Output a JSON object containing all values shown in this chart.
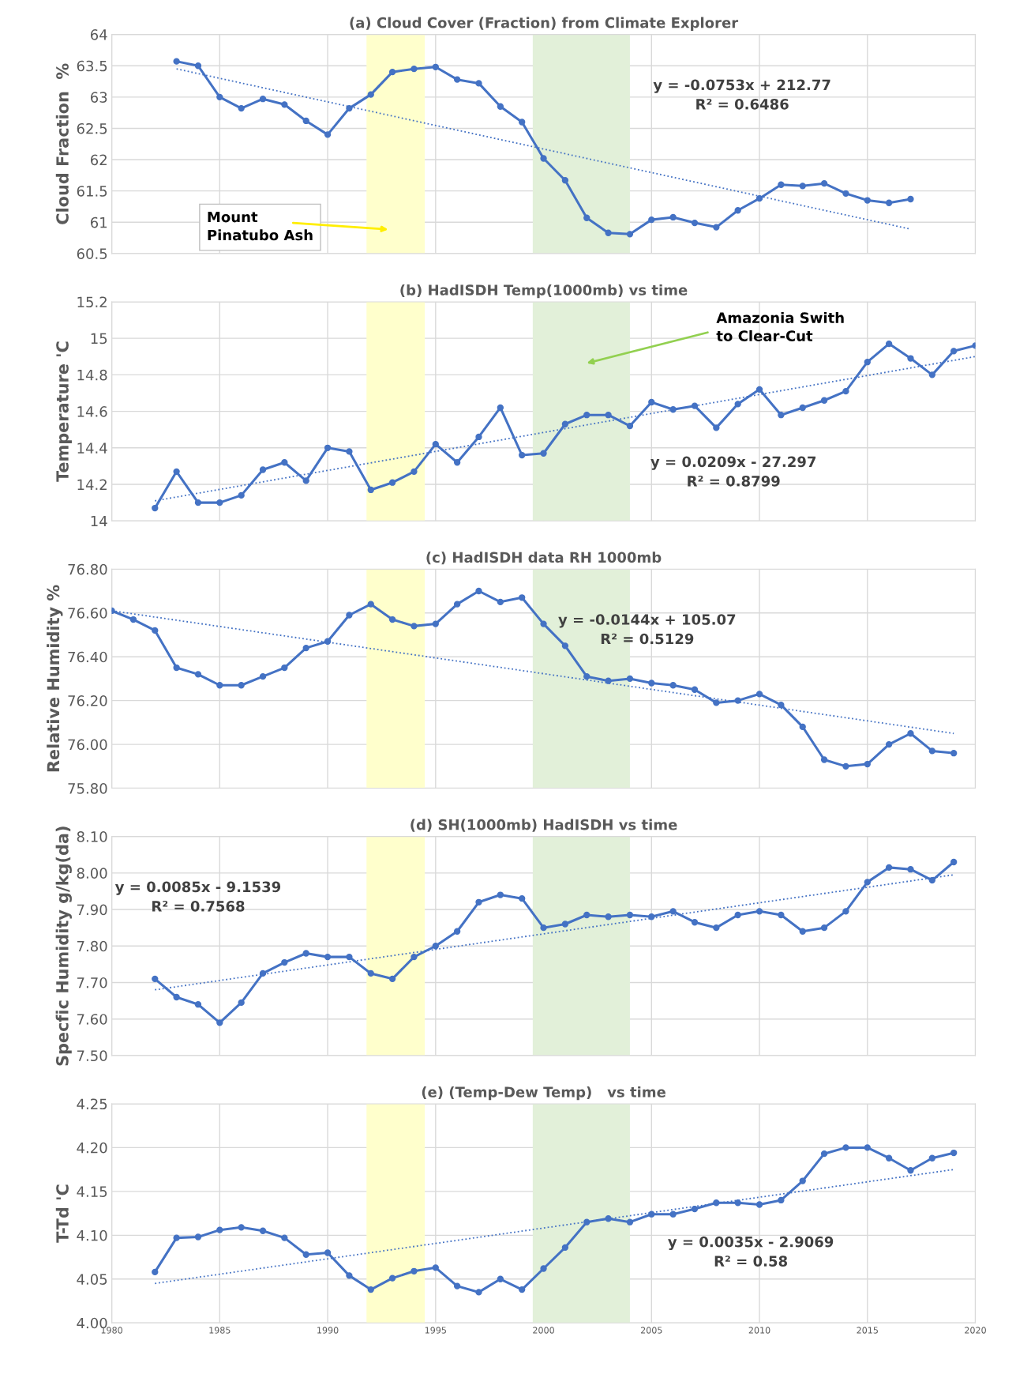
{
  "chart_data": [
    {
      "type": "line",
      "title": "(a) Cloud Cover (Fraction) from Climate Explorer",
      "ylabel": "Cloud Fraction  %",
      "xlim": [
        1980,
        2020
      ],
      "xticks": [
        1980,
        1985,
        1990,
        1995,
        2000,
        2005,
        2010,
        2015,
        2020
      ],
      "ylim": [
        60.5,
        64
      ],
      "yticks": [
        60.5,
        61,
        61.5,
        62,
        62.5,
        63,
        63.5,
        64
      ],
      "tick_labels": "y",
      "grid": true,
      "legend": false,
      "series": [
        {
          "color": "#4472c4",
          "marker": "circle",
          "line_style": "solid",
          "x": [
            1983,
            1984,
            1985,
            1986,
            1987,
            1988,
            1989,
            1990,
            1991,
            1992,
            1993,
            1994,
            1995,
            1996,
            1997,
            1998,
            1999,
            2000,
            2001,
            2002,
            2003,
            2004,
            2005,
            2006,
            2007,
            2008,
            2009,
            2010,
            2011,
            2012,
            2013,
            2014,
            2015,
            2016,
            2017
          ],
          "values": [
            63.57,
            63.5,
            63.0,
            62.82,
            62.97,
            62.88,
            62.62,
            62.4,
            62.82,
            63.04,
            63.4,
            63.45,
            63.48,
            63.28,
            63.22,
            62.85,
            62.6,
            62.02,
            61.67,
            61.07,
            60.83,
            60.81,
            61.04,
            61.08,
            60.99,
            60.92,
            61.19,
            61.38,
            61.6,
            61.58,
            61.62,
            61.46,
            61.35,
            61.31,
            61.37
          ]
        },
        {
          "type": "line",
          "color": "#4472c4",
          "marker": "none",
          "line_style": "dotted",
          "x": [
            1983,
            2017
          ],
          "values": [
            63.45,
            60.89
          ]
        }
      ],
      "bands": [
        {
          "axis": "x",
          "from": 1991.8,
          "to": 1994.5,
          "color": "#ffffcc"
        },
        {
          "axis": "x",
          "from": 1999.5,
          "to": 2004,
          "color": "#e2f0d9"
        }
      ],
      "annotations": [
        "Mount\nPinatubo Ash",
        "y = -0.0753x + 212.77\nR² = 0.6486"
      ]
    },
    {
      "type": "line",
      "title": "(b) HadISDH Temp(1000mb) vs time",
      "ylabel": "Temperature 'C",
      "xlim": [
        1980,
        2020
      ],
      "xticks": [
        1980,
        1985,
        1990,
        1995,
        2000,
        2005,
        2010,
        2015,
        2020
      ],
      "ylim": [
        14,
        15.2
      ],
      "yticks": [
        14,
        14.2,
        14.4,
        14.6,
        14.8,
        15,
        15.2
      ],
      "tick_labels": "y",
      "grid": true,
      "legend": false,
      "series": [
        {
          "color": "#4472c4",
          "marker": "circle",
          "line_style": "solid",
          "x": [
            1982,
            1983,
            1984,
            1985,
            1986,
            1987,
            1988,
            1989,
            1990,
            1991,
            1992,
            1993,
            1994,
            1995,
            1996,
            1997,
            1998,
            1999,
            2000,
            2001,
            2002,
            2003,
            2004,
            2005,
            2006,
            2007,
            2008,
            2009,
            2010,
            2011,
            2012,
            2013,
            2014,
            2015,
            2016,
            2017,
            2018,
            2019,
            2020
          ],
          "values": [
            14.07,
            14.27,
            14.1,
            14.1,
            14.14,
            14.28,
            14.32,
            14.22,
            14.4,
            14.38,
            14.17,
            14.21,
            14.27,
            14.42,
            14.32,
            14.46,
            14.62,
            14.36,
            14.37,
            14.53,
            14.58,
            14.58,
            14.52,
            14.65,
            14.61,
            14.63,
            14.51,
            14.64,
            14.72,
            14.58,
            14.62,
            14.66,
            14.71,
            14.87,
            14.97,
            14.89,
            14.8,
            14.93,
            14.96
          ]
        },
        {
          "type": "line",
          "color": "#4472c4",
          "marker": "none",
          "line_style": "dotted",
          "x": [
            1982,
            2020
          ],
          "values": [
            14.11,
            14.9
          ]
        }
      ],
      "bands": [
        {
          "axis": "x",
          "from": 1991.8,
          "to": 1994.5,
          "color": "#ffffcc"
        },
        {
          "axis": "x",
          "from": 1999.5,
          "to": 2004,
          "color": "#e2f0d9"
        }
      ],
      "annotations": [
        "Amazonia Swith\nto Clear-Cut",
        "y = 0.0209x - 27.297\nR² = 0.8799"
      ]
    },
    {
      "type": "line",
      "title": "(c) HadISDH data RH 1000mb",
      "ylabel": "Relative Humidity %",
      "xlim": [
        1980,
        2020
      ],
      "xticks": [
        1980,
        1985,
        1990,
        1995,
        2000,
        2005,
        2010,
        2015,
        2020
      ],
      "ylim": [
        75.8,
        76.8
      ],
      "yticks": [
        {
          "value": 75.8,
          "label": "75.80"
        },
        {
          "value": 76.0,
          "label": "76.00"
        },
        {
          "value": 76.2,
          "label": "76.20"
        },
        {
          "value": 76.4,
          "label": "76.40"
        },
        {
          "value": 76.6,
          "label": "76.60"
        },
        {
          "value": 76.8,
          "label": "76.80"
        }
      ],
      "tick_labels": "y",
      "grid": true,
      "legend": false,
      "series": [
        {
          "color": "#4472c4",
          "marker": "circle",
          "line_style": "solid",
          "x": [
            1980,
            1981,
            1982,
            1983,
            1984,
            1985,
            1986,
            1987,
            1988,
            1989,
            1990,
            1991,
            1992,
            1993,
            1994,
            1995,
            1996,
            1997,
            1998,
            1999,
            2000,
            2001,
            2002,
            2003,
            2004,
            2005,
            2006,
            2007,
            2008,
            2009,
            2010,
            2011,
            2012,
            2013,
            2014,
            2015,
            2016,
            2017,
            2018,
            2019
          ],
          "values": [
            76.61,
            76.57,
            76.52,
            76.35,
            76.32,
            76.27,
            76.27,
            76.31,
            76.35,
            76.44,
            76.47,
            76.59,
            76.64,
            76.57,
            76.54,
            76.55,
            76.64,
            76.7,
            76.65,
            76.67,
            76.55,
            76.45,
            76.31,
            76.29,
            76.3,
            76.28,
            76.27,
            76.25,
            76.19,
            76.2,
            76.23,
            76.18,
            76.08,
            75.93,
            75.9,
            75.91,
            76.0,
            76.05,
            75.97,
            75.96
          ]
        },
        {
          "type": "line",
          "color": "#4472c4",
          "marker": "none",
          "line_style": "dotted",
          "x": [
            1980,
            2019
          ],
          "values": [
            76.61,
            76.05
          ]
        }
      ],
      "bands": [
        {
          "axis": "x",
          "from": 1991.8,
          "to": 1994.5,
          "color": "#ffffcc"
        },
        {
          "axis": "x",
          "from": 1999.5,
          "to": 2004,
          "color": "#e2f0d9"
        }
      ],
      "annotations": [
        "y = -0.0144x + 105.07\nR² = 0.5129"
      ]
    },
    {
      "type": "line",
      "title": "(d) SH(1000mb) HadISDH vs time",
      "ylabel": "Specfic Humidity g/kg(da)",
      "xlim": [
        1980,
        2020
      ],
      "xticks": [
        1980,
        1985,
        1990,
        1995,
        2000,
        2005,
        2010,
        2015,
        2020
      ],
      "ylim": [
        7.5,
        8.1
      ],
      "yticks": [
        {
          "value": 7.5,
          "label": "7.50"
        },
        {
          "value": 7.6,
          "label": "7.60"
        },
        {
          "value": 7.7,
          "label": "7.70"
        },
        {
          "value": 7.8,
          "label": "7.80"
        },
        {
          "value": 7.9,
          "label": "7.90"
        },
        {
          "value": 8.0,
          "label": "8.00"
        },
        {
          "value": 8.1,
          "label": "8.10"
        }
      ],
      "tick_labels": "y",
      "grid": true,
      "legend": false,
      "series": [
        {
          "color": "#4472c4",
          "marker": "circle",
          "line_style": "solid",
          "x": [
            1982,
            1983,
            1984,
            1985,
            1986,
            1987,
            1988,
            1989,
            1990,
            1991,
            1992,
            1993,
            1994,
            1995,
            1996,
            1997,
            1998,
            1999,
            2000,
            2001,
            2002,
            2003,
            2004,
            2005,
            2006,
            2007,
            2008,
            2009,
            2010,
            2011,
            2012,
            2013,
            2014,
            2015,
            2016,
            2017,
            2018,
            2019
          ],
          "values": [
            7.71,
            7.66,
            7.64,
            7.59,
            7.645,
            7.725,
            7.755,
            7.78,
            7.77,
            7.77,
            7.725,
            7.71,
            7.77,
            7.8,
            7.84,
            7.92,
            7.94,
            7.93,
            7.85,
            7.86,
            7.885,
            7.88,
            7.885,
            7.88,
            7.895,
            7.865,
            7.85,
            7.885,
            7.895,
            7.885,
            7.84,
            7.85,
            7.895,
            7.975,
            8.015,
            8.01,
            7.98,
            8.03
          ]
        },
        {
          "type": "line",
          "color": "#4472c4",
          "marker": "none",
          "line_style": "dotted",
          "x": [
            1982,
            2019
          ],
          "values": [
            7.68,
            7.995
          ]
        }
      ],
      "bands": [
        {
          "axis": "x",
          "from": 1991.8,
          "to": 1994.5,
          "color": "#ffffcc"
        },
        {
          "axis": "x",
          "from": 1999.5,
          "to": 2004,
          "color": "#e2f0d9"
        }
      ],
      "annotations": [
        "y = 0.0085x - 9.1539\nR² = 0.7568"
      ]
    },
    {
      "type": "line",
      "title": "(e) (Temp-Dew Temp)   vs time",
      "ylabel": "T-Td 'C",
      "xlim": [
        1980,
        2020
      ],
      "xticks": [
        1980,
        1985,
        1990,
        1995,
        2000,
        2005,
        2010,
        2015,
        2020
      ],
      "ylim": [
        4.0,
        4.25
      ],
      "yticks": [
        {
          "value": 4.0,
          "label": "4.00"
        },
        {
          "value": 4.05,
          "label": "4.05"
        },
        {
          "value": 4.1,
          "label": "4.10"
        },
        {
          "value": 4.15,
          "label": "4.15"
        },
        {
          "value": 4.2,
          "label": "4.20"
        },
        {
          "value": 4.25,
          "label": "4.25"
        }
      ],
      "grid": true,
      "legend": false,
      "series": [
        {
          "color": "#4472c4",
          "marker": "circle",
          "line_style": "solid",
          "x": [
            1982,
            1983,
            1984,
            1985,
            1986,
            1987,
            1988,
            1989,
            1990,
            1991,
            1992,
            1993,
            1994,
            1995,
            1996,
            1997,
            1998,
            1999,
            2000,
            2001,
            2002,
            2003,
            2004,
            2005,
            2006,
            2007,
            2008,
            2009,
            2010,
            2011,
            2012,
            2013,
            2014,
            2015,
            2016,
            2017,
            2018,
            2019
          ],
          "values": [
            4.058,
            4.097,
            4.098,
            4.106,
            4.109,
            4.105,
            4.097,
            4.078,
            4.08,
            4.054,
            4.038,
            4.051,
            4.059,
            4.063,
            4.042,
            4.035,
            4.05,
            4.038,
            4.062,
            4.086,
            4.115,
            4.119,
            4.115,
            4.124,
            4.124,
            4.13,
            4.137,
            4.137,
            4.135,
            4.14,
            4.162,
            4.193,
            4.2,
            4.2,
            4.188,
            4.174,
            4.188,
            4.194
          ]
        },
        {
          "type": "line",
          "color": "#4472c4",
          "marker": "none",
          "line_style": "dotted",
          "x": [
            1982,
            2019
          ],
          "values": [
            4.045,
            4.175
          ]
        }
      ],
      "bands": [
        {
          "axis": "x",
          "from": 1991.8,
          "to": 1994.5,
          "color": "#ffffcc"
        },
        {
          "axis": "x",
          "from": 1999.5,
          "to": 2004,
          "color": "#e2f0d9"
        }
      ],
      "annotations": [
        "y = 0.0035x - 2.9069\nR² = 0.58"
      ]
    }
  ]
}
